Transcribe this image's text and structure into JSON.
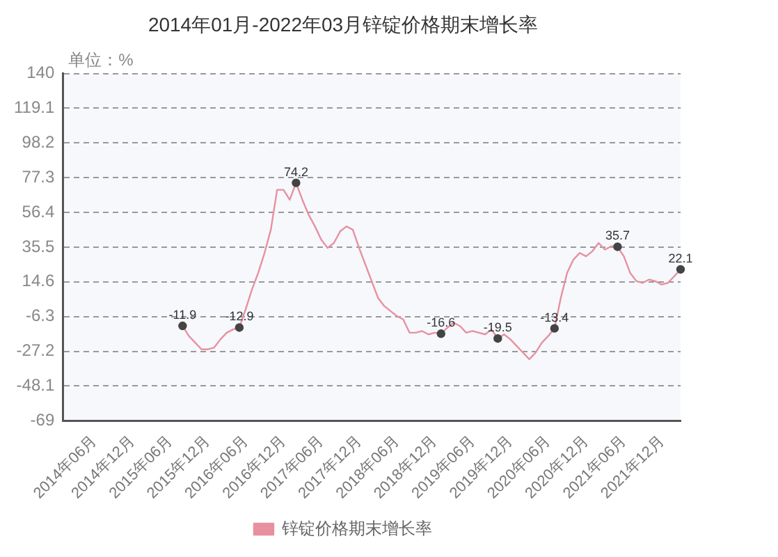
{
  "chart_data": {
    "type": "line",
    "title": "2014年01月-2022年03月锌锭价格期末增长率",
    "annotations": [
      "单位：%"
    ],
    "categories": [
      null,
      null,
      null,
      null,
      null,
      "2014年06月",
      null,
      null,
      null,
      null,
      null,
      "2014年12月",
      null,
      null,
      null,
      null,
      null,
      "2015年06月",
      null,
      null,
      null,
      null,
      null,
      "2015年12月",
      null,
      null,
      null,
      null,
      null,
      "2016年06月",
      null,
      null,
      null,
      null,
      null,
      "2016年12月",
      null,
      null,
      null,
      null,
      null,
      "2017年06月",
      null,
      null,
      null,
      null,
      null,
      "2017年12月",
      null,
      null,
      null,
      null,
      null,
      "2018年06月",
      null,
      null,
      null,
      null,
      null,
      "2018年12月",
      null,
      null,
      null,
      null,
      null,
      "2019年06月",
      null,
      null,
      null,
      null,
      null,
      "2019年12月",
      null,
      null,
      null,
      null,
      null,
      "2020年06月",
      null,
      null,
      null,
      null,
      null,
      "2020年12月",
      null,
      null,
      null,
      null,
      null,
      "2021年06月",
      null,
      null,
      null,
      null,
      null,
      "2021年12月",
      null,
      null,
      null
    ],
    "series": [
      {
        "name": "锌锭价格期末增长率",
        "color": "#e8909f",
        "values": [
          null,
          null,
          null,
          null,
          null,
          null,
          null,
          null,
          null,
          null,
          null,
          null,
          null,
          null,
          null,
          null,
          null,
          null,
          null,
          -11.9,
          -18,
          -22,
          -26,
          -26,
          -25,
          -20,
          -16,
          -14,
          -12.9,
          -2,
          10,
          20,
          32,
          46,
          70,
          70,
          64,
          74.2,
          64,
          55,
          48,
          40,
          35,
          38,
          45,
          48,
          46,
          35,
          25,
          15,
          5,
          0,
          -3,
          -6,
          -8,
          -16,
          -16,
          -15,
          -17,
          -16,
          -16.6,
          -13,
          -10,
          -12,
          -16,
          -15,
          -16,
          -17,
          -14,
          -19.5,
          -17,
          -20,
          -24,
          -28,
          -32,
          -28,
          -22,
          -18,
          -13.4,
          5,
          20,
          28,
          32,
          30,
          33,
          38,
          34,
          36,
          35.7,
          30,
          20,
          15,
          14,
          16,
          15,
          13,
          14,
          18,
          22.1
        ],
        "value_labels": [
          null,
          null,
          null,
          null,
          null,
          null,
          null,
          null,
          null,
          null,
          null,
          null,
          null,
          null,
          null,
          null,
          null,
          null,
          null,
          "-11.9",
          null,
          null,
          null,
          null,
          null,
          null,
          null,
          null,
          "-12.9",
          null,
          null,
          null,
          null,
          null,
          null,
          null,
          null,
          "74.2",
          null,
          null,
          null,
          null,
          null,
          null,
          null,
          null,
          null,
          null,
          null,
          null,
          null,
          null,
          null,
          null,
          null,
          null,
          null,
          null,
          null,
          null,
          "-16.6",
          null,
          null,
          null,
          null,
          null,
          null,
          null,
          null,
          "-19.5",
          null,
          null,
          null,
          null,
          null,
          null,
          null,
          null,
          "-13.4",
          null,
          null,
          null,
          null,
          null,
          null,
          null,
          null,
          null,
          "35.7",
          null,
          null,
          null,
          null,
          null,
          null,
          null,
          null,
          null,
          "22.1"
        ]
      }
    ],
    "ylim": [
      -69,
      140
    ],
    "yticks": [
      140,
      119.1,
      98.2,
      77.3,
      56.4,
      35.5,
      14.6,
      -6.3,
      -27.2,
      -48.1,
      -69
    ],
    "grid": "y",
    "legend": "bottom",
    "line_style": "solid"
  }
}
